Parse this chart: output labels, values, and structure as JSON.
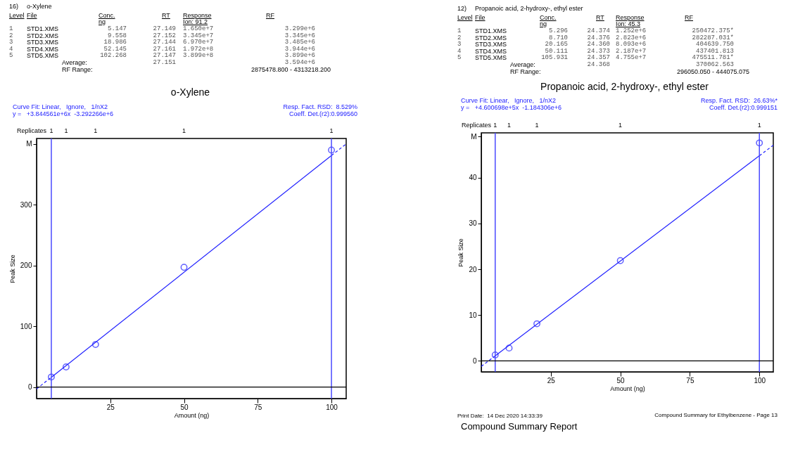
{
  "chart_data": [
    {
      "type": "scatter",
      "title": "o-Xylene",
      "xlabel": "Amount (ng)",
      "ylabel": "Peak Size",
      "grid": false,
      "xlim": [
        0,
        105
      ],
      "xticks": [
        25,
        50,
        75,
        100
      ],
      "ylim": [
        -19,
        409
      ],
      "yticks": [
        0,
        100,
        200,
        300,
        {
          "value": 400,
          "label": "M"
        }
      ],
      "series": [
        {
          "type": "scatter",
          "color": "#1f1fff",
          "marker": "circle",
          "x": [
            5,
            10,
            20,
            50,
            100
          ],
          "values": [
            16.5,
            33,
            70,
            197,
            390
          ]
        },
        {
          "type": "line",
          "color": "#1f1fff",
          "line_style": "solid",
          "x": [
            5,
            100
          ],
          "values": [
            16,
            381
          ]
        },
        {
          "type": "line",
          "color": "#1f1fff",
          "line_style": "dashed",
          "x": [
            0,
            5
          ],
          "values": [
            -3,
            16
          ]
        },
        {
          "type": "line",
          "color": "#1f1fff",
          "line_style": "dashed",
          "x": [
            100,
            105
          ],
          "values": [
            381,
            400
          ]
        }
      ],
      "ref_lines": [
        {
          "axis": "x",
          "value": 5,
          "color": "#4a4aff"
        },
        {
          "axis": "x",
          "value": 100,
          "color": "#4a4aff"
        },
        {
          "axis": "y",
          "value": 0,
          "color": "#000000"
        }
      ],
      "annotations": [
        "16)",
        "o-Xylene",
        "Level",
        "File",
        "Conc.\nng",
        "RT",
        "Response\nIon: 91.2",
        "RF",
        "1",
        "STD1.XMS",
        "5.147",
        "27.149",
        "1.650e+7",
        "3.299e+6",
        "2",
        "STD2.XMS",
        "9.558",
        "27.152",
        "3.345e+7",
        "3.345e+6",
        "3",
        "STD3.XMS",
        "18.986",
        "27.144",
        "6.970e+7",
        "3.485e+6",
        "4",
        "STD4.XMS",
        "52.145",
        "27.161",
        "1.972e+8",
        "3.944e+6",
        "5",
        "STD5.XMS",
        "102.268",
        "27.147",
        "3.899e+8",
        "3.899e+6",
        "Average:",
        "27.151",
        "3.594e+6",
        "RF Range:",
        "2875478.800 - 4313218.200",
        "Curve Fit: Linear,   Ignore,   1/nX2",
        "y =   +3.844561e+6x  -3.292266e+6",
        "Resp. Fact. RSD:  8.529%",
        "Coeff. Det.(r2):0.999560",
        "Replicates",
        "1",
        "1",
        "1",
        "1",
        "1"
      ]
    },
    {
      "type": "scatter",
      "title": "Propanoic acid, 2-hydroxy-, ethyl ester",
      "xlabel": "Amount (ng)",
      "ylabel": "Peak Size",
      "grid": false,
      "xlim": [
        0,
        105
      ],
      "xticks": [
        25,
        50,
        75,
        100
      ],
      "ylim": [
        -2.4,
        49.8
      ],
      "yticks": [
        0,
        10,
        20,
        30,
        40,
        {
          "value": 49,
          "label": "M"
        }
      ],
      "series": [
        {
          "type": "scatter",
          "color": "#1f1fff",
          "marker": "circle",
          "x": [
            5,
            10,
            20,
            50,
            100
          ],
          "values": [
            1.3,
            2.8,
            8.1,
            21.9,
            47.6
          ]
        },
        {
          "type": "line",
          "color": "#1f1fff",
          "line_style": "solid",
          "x": [
            5,
            100
          ],
          "values": [
            1.1,
            44.8
          ]
        },
        {
          "type": "line",
          "color": "#1f1fff",
          "line_style": "dashed",
          "x": [
            0,
            5
          ],
          "values": [
            -1.2,
            1.1
          ]
        },
        {
          "type": "line",
          "color": "#1f1fff",
          "line_style": "dashed",
          "x": [
            100,
            105
          ],
          "values": [
            44.8,
            47.1
          ]
        }
      ],
      "ref_lines": [
        {
          "axis": "x",
          "value": 5,
          "color": "#4a4aff"
        },
        {
          "axis": "x",
          "value": 100,
          "color": "#4a4aff"
        },
        {
          "axis": "y",
          "value": 0,
          "color": "#000000"
        }
      ],
      "annotations": [
        "12)",
        "Propanoic acid, 2-hydroxy-, ethyl ester",
        "Level",
        "File",
        "Conc.\nng",
        "RT",
        "Response\nIon: 45.3",
        "RF",
        "1",
        "STD1.XMS",
        "5.296",
        "24.374",
        "1.252e+6",
        "250472.375*",
        "2",
        "STD2.XMS",
        "8.710",
        "24.376",
        "2.823e+6",
        "282287.031*",
        "3",
        "STD3.XMS",
        "20.165",
        "24.360",
        "8.093e+6",
        "404639.750",
        "4",
        "STD4.XMS",
        "50.111",
        "24.373",
        "2.187e+7",
        "437401.813",
        "5",
        "STD5.XMS",
        "105.931",
        "24.357",
        "4.755e+7",
        "475511.781*",
        "Average:",
        "24.368",
        "370062.563",
        "RF Range:",
        "296050.050 - 444075.075",
        "Curve Fit: Linear,   Ignore,   1/nX2",
        "y =   +4.600698e+5x  -1.184306e+6",
        "Resp. Fact. RSD:  26.63%*",
        "Coeff. Det.(r2):0.999151",
        "Replicates",
        "1",
        "1",
        "1",
        "1",
        "1",
        "Print Date:  14 Dec 2020 14:33:39",
        "Compound Summary for Ethylbenzene - Page 13",
        "Compound Summary Report"
      ]
    }
  ]
}
